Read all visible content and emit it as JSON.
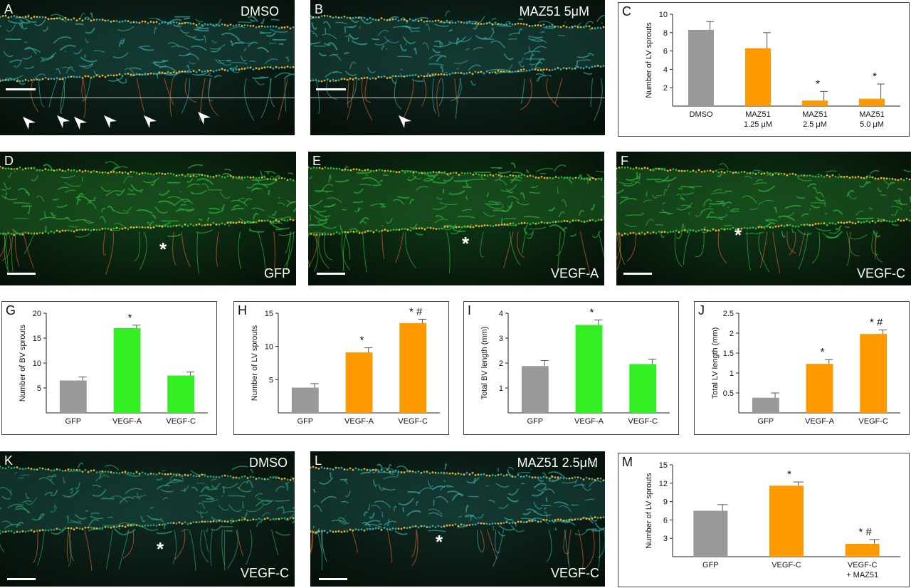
{
  "panels": {
    "A": {
      "letter": "A",
      "caption": "DMSO"
    },
    "B": {
      "letter": "B",
      "caption": "MAZ51 5μM"
    },
    "D": {
      "letter": "D",
      "caption": "GFP"
    },
    "E": {
      "letter": "E",
      "caption": "VEGF-A"
    },
    "F": {
      "letter": "F",
      "caption": "VEGF-C"
    },
    "K": {
      "letter": "K",
      "caption_top": "DMSO",
      "caption_bottom": "VEGF-C"
    },
    "L": {
      "letter": "L",
      "caption_top": "MAZ51 2.5μM",
      "caption_bottom": "VEGF-C"
    }
  },
  "asterisk": "*",
  "colors": {
    "gray": "#999999",
    "orange": "#ff9900",
    "green": "#33ee22"
  },
  "chart_data": [
    {
      "id": "C",
      "letter": "C",
      "type": "bar",
      "categories": [
        [
          "DMSO"
        ],
        [
          "MAZ51",
          "1.25 μM"
        ],
        [
          "MAZ51",
          "2.5 μM"
        ],
        [
          "MAZ51",
          "5.0 μM"
        ]
      ],
      "values": [
        8.3,
        6.3,
        0.6,
        0.8
      ],
      "errors": [
        0.9,
        1.7,
        1.0,
        1.6
      ],
      "colors": [
        "gray",
        "orange",
        "orange",
        "orange"
      ],
      "marks": [
        "",
        "",
        "*",
        "*"
      ],
      "ylabel": "Number of LV sprouts",
      "ylim": [
        0,
        10
      ],
      "yticks": [
        2,
        4,
        6,
        8,
        10
      ]
    },
    {
      "id": "G",
      "letter": "G",
      "type": "bar",
      "categories": [
        [
          "GFP"
        ],
        [
          "VEGF-A"
        ],
        [
          "VEGF-C"
        ]
      ],
      "values": [
        6.5,
        17.0,
        7.5
      ],
      "errors": [
        0.7,
        0.6,
        0.7
      ],
      "colors": [
        "gray",
        "green",
        "green"
      ],
      "marks": [
        "",
        "*",
        ""
      ],
      "ylabel": "Number of BV sprouts",
      "ylim": [
        0,
        20
      ],
      "yticks": [
        5,
        10,
        15,
        20
      ]
    },
    {
      "id": "H",
      "letter": "H",
      "type": "bar",
      "categories": [
        [
          "GFP"
        ],
        [
          "VEGF-A"
        ],
        [
          "VEGF-C"
        ]
      ],
      "values": [
        3.8,
        9.1,
        13.5
      ],
      "errors": [
        0.6,
        0.7,
        0.6
      ],
      "colors": [
        "gray",
        "orange",
        "orange"
      ],
      "marks": [
        "",
        "*",
        "* #"
      ],
      "ylabel": "Number of LV sprouts",
      "ylim": [
        0,
        15
      ],
      "yticks": [
        5,
        10,
        15
      ]
    },
    {
      "id": "I",
      "letter": "I",
      "type": "bar",
      "categories": [
        [
          "GFP"
        ],
        [
          "VEGF-A"
        ],
        [
          "VEGF-C"
        ]
      ],
      "values": [
        1.88,
        3.53,
        1.96
      ],
      "errors": [
        0.22,
        0.2,
        0.2
      ],
      "colors": [
        "gray",
        "green",
        "green"
      ],
      "marks": [
        "",
        "*",
        ""
      ],
      "ylabel": "Total BV length (mm)",
      "ylim": [
        0,
        4
      ],
      "yticks": [
        1,
        2,
        3,
        4
      ]
    },
    {
      "id": "J",
      "letter": "J",
      "type": "bar",
      "categories": [
        [
          "GFP"
        ],
        [
          "VEGF-A"
        ],
        [
          "VEGF-C"
        ]
      ],
      "values": [
        0.38,
        1.23,
        1.98
      ],
      "errors": [
        0.12,
        0.11,
        0.1
      ],
      "colors": [
        "gray",
        "orange",
        "orange"
      ],
      "marks": [
        "",
        "*",
        "* #"
      ],
      "ylabel": "Total LV length (mm)",
      "ylim": [
        0,
        2.5
      ],
      "yticks": [
        0.5,
        1,
        1.5,
        2,
        2.5
      ]
    },
    {
      "id": "M",
      "letter": "M",
      "type": "bar",
      "categories": [
        [
          "GFP"
        ],
        [
          "VEGF-C"
        ],
        [
          "VEGF-C",
          "+ MAZ51"
        ]
      ],
      "values": [
        7.5,
        11.6,
        2.1
      ],
      "errors": [
        1.0,
        0.6,
        0.7
      ],
      "colors": [
        "gray",
        "orange",
        "orange"
      ],
      "marks": [
        "",
        "*",
        "* #"
      ],
      "ylabel": "Number of LV sprouts",
      "ylim": [
        0,
        15
      ],
      "yticks": [
        3,
        6,
        9,
        12,
        15
      ]
    }
  ]
}
